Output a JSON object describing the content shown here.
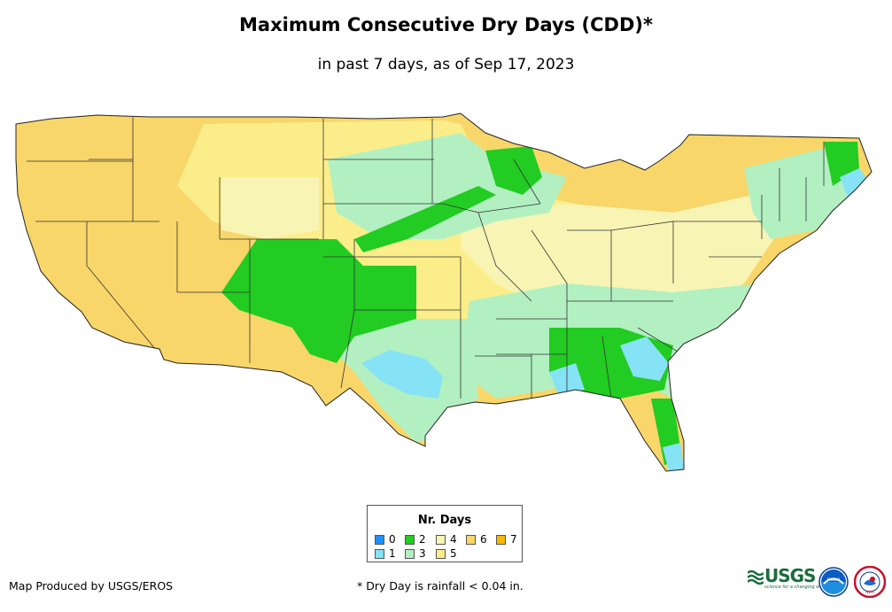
{
  "title": "Maximum Consecutive Dry Days (CDD)*",
  "subtitle": "in past 7 days, as of Sep 17, 2023",
  "legend": {
    "title": "Nr. Days",
    "items": [
      {
        "label": "0",
        "color": "#1e90ff"
      },
      {
        "label": "1",
        "color": "#86e2f5"
      },
      {
        "label": "2",
        "color": "#22cc22"
      },
      {
        "label": "3",
        "color": "#b2f0c2"
      },
      {
        "label": "4",
        "color": "#f8f4b4"
      },
      {
        "label": "5",
        "color": "#fbee8a"
      },
      {
        "label": "6",
        "color": "#f8d66a"
      },
      {
        "label": "7",
        "color": "#f5b800"
      }
    ]
  },
  "credit": "Map Produced by USGS/EROS",
  "footnote": "* Dry Day is rainfall < 0.04 in.",
  "logos": {
    "usgs": "USGS",
    "usgs_tagline": "science for a changing world",
    "noaa": "noaa",
    "nws": "NWS"
  }
}
